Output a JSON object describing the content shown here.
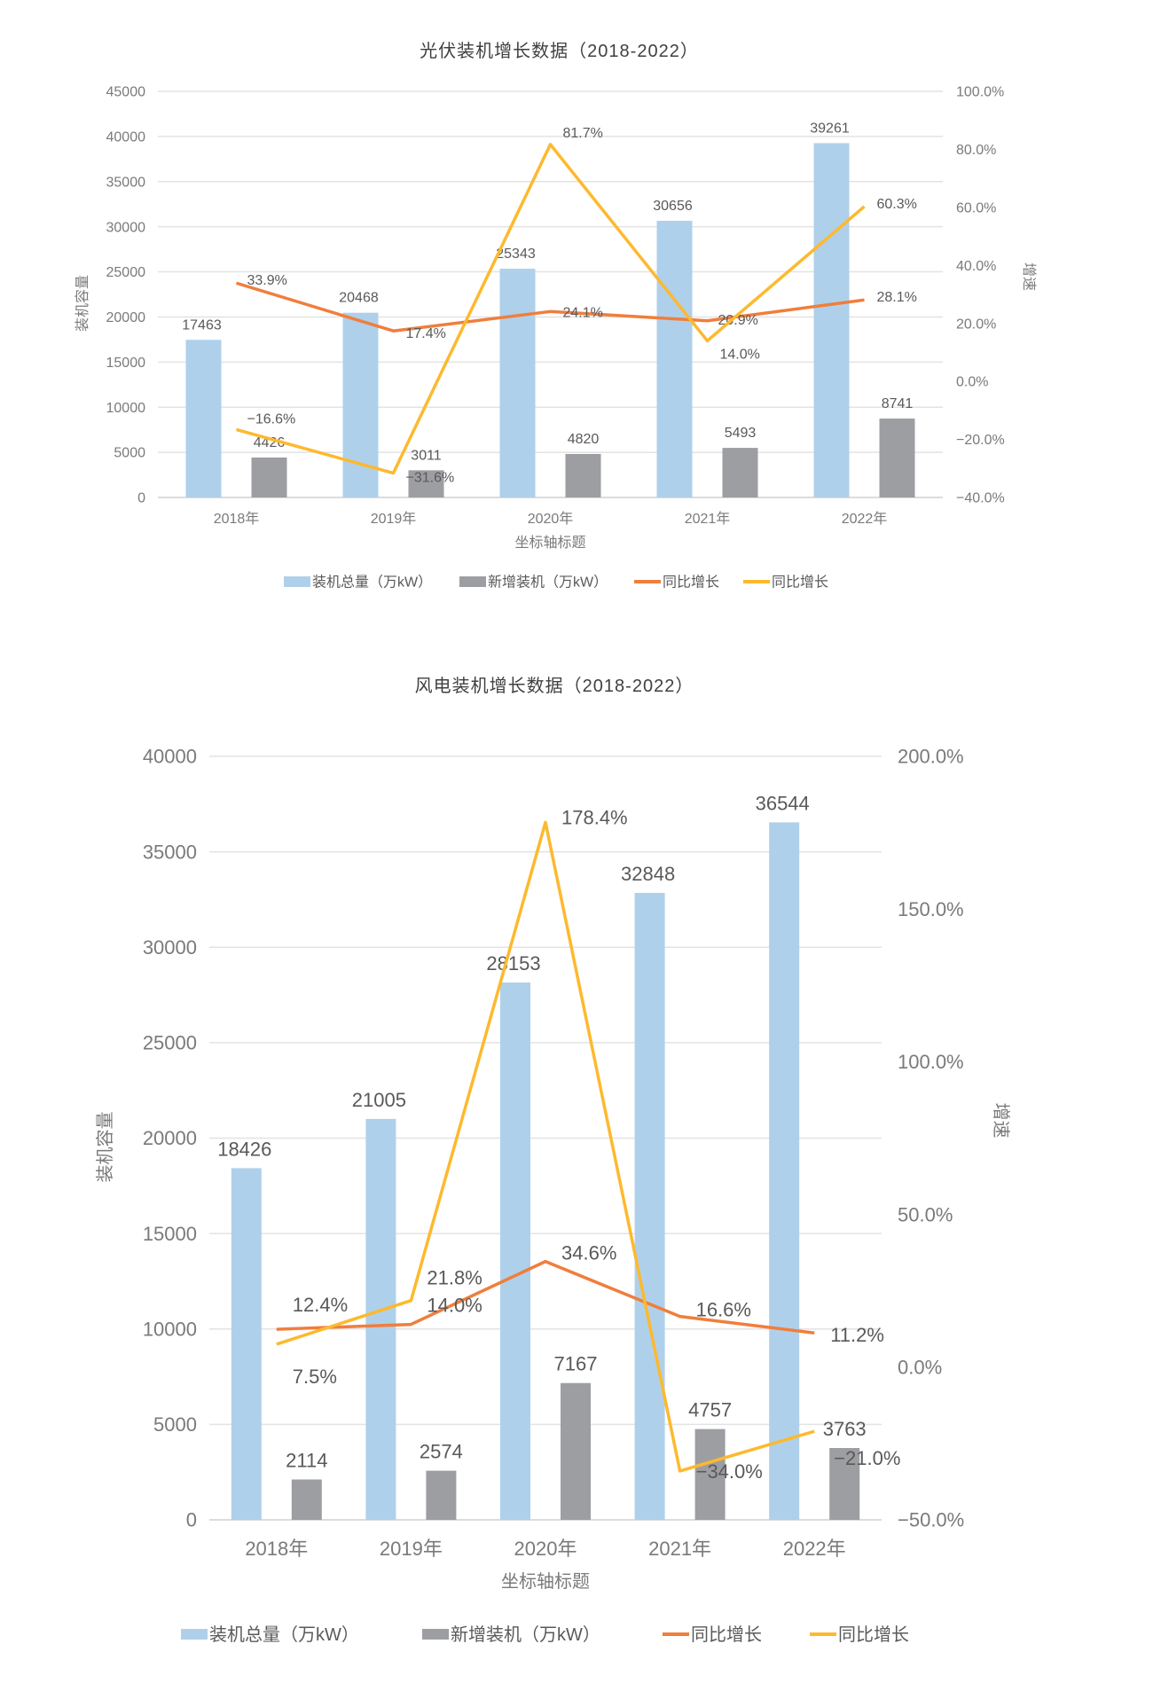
{
  "chart_data": [
    {
      "type": "bar",
      "title": "光伏装机增长数据（2018-2022）",
      "xlabel": "坐标轴标题",
      "ylabel": "装机容量",
      "y2label": "增速",
      "categories": [
        "2018年",
        "2019年",
        "2020年",
        "2021年",
        "2022年"
      ],
      "ylim": [
        0,
        45000
      ],
      "yticks": [
        0,
        5000,
        10000,
        15000,
        20000,
        25000,
        30000,
        35000,
        40000,
        45000
      ],
      "y2lim": [
        -40,
        100
      ],
      "y2ticks": [
        -40,
        -20,
        0,
        20,
        40,
        60,
        80,
        100
      ],
      "grid": true,
      "legend_position": "bottom",
      "series": [
        {
          "name": "装机总量（万kW）",
          "kind": "bar",
          "axis": "left",
          "color": "#AFD0EA",
          "values": [
            17463,
            20468,
            25343,
            30656,
            39261
          ],
          "labels": [
            "17463",
            "20468",
            "25343",
            "30656",
            "39261"
          ]
        },
        {
          "name": "新增装机（万kW）",
          "kind": "bar",
          "axis": "left",
          "color": "#9D9EA2",
          "values": [
            4426,
            3011,
            4820,
            5493,
            8741
          ],
          "labels": [
            "4426",
            "3011",
            "4820",
            "5493",
            "8741"
          ]
        },
        {
          "name": "同比增长",
          "kind": "line",
          "axis": "right",
          "color": "#F07E3C",
          "values": [
            33.9,
            17.4,
            24.1,
            20.9,
            28.1
          ],
          "labels": [
            "33.9%",
            "17.4%",
            "24.1%",
            "20.9%",
            "28.1%"
          ]
        },
        {
          "name": "同比增长",
          "kind": "line",
          "axis": "right",
          "color": "#FDB92E",
          "values": [
            -16.6,
            -31.6,
            81.7,
            14.0,
            60.3
          ],
          "labels": [
            "−16.6%",
            "−31.6%",
            "81.7%",
            "14.0%",
            "60.3%"
          ]
        }
      ]
    },
    {
      "type": "bar",
      "title": "风电装机增长数据（2018-2022）",
      "xlabel": "坐标轴标题",
      "ylabel": "装机容量",
      "y2label": "增速",
      "categories": [
        "2018年",
        "2019年",
        "2020年",
        "2021年",
        "2022年"
      ],
      "ylim": [
        0,
        40000
      ],
      "yticks": [
        0,
        5000,
        10000,
        15000,
        20000,
        25000,
        30000,
        35000,
        40000
      ],
      "y2lim": [
        -50,
        200
      ],
      "y2ticks": [
        -50,
        0,
        50,
        100,
        150,
        200
      ],
      "grid": true,
      "legend_position": "bottom",
      "series": [
        {
          "name": "装机总量（万kW）",
          "kind": "bar",
          "axis": "left",
          "color": "#AFD0EA",
          "values": [
            18426,
            21005,
            28153,
            32848,
            36544
          ],
          "labels": [
            "18426",
            "21005",
            "28153",
            "32848",
            "36544"
          ]
        },
        {
          "name": "新增装机（万kW）",
          "kind": "bar",
          "axis": "left",
          "color": "#9D9EA2",
          "values": [
            2114,
            2574,
            7167,
            4757,
            3763
          ],
          "labels": [
            "2114",
            "2574",
            "7167",
            "4757",
            "3763"
          ]
        },
        {
          "name": "同比增长",
          "kind": "line",
          "axis": "right",
          "color": "#F07E3C",
          "values": [
            12.4,
            14.0,
            34.6,
            16.6,
            11.2
          ],
          "labels": [
            "12.4%",
            "14.0%",
            "34.6%",
            "16.6%",
            "11.2%"
          ]
        },
        {
          "name": "同比增长",
          "kind": "line",
          "axis": "right",
          "color": "#FDB92E",
          "values": [
            7.5,
            21.8,
            178.4,
            -34.0,
            -21.0
          ],
          "labels": [
            "7.5%",
            "21.8%",
            "178.4%",
            "−34.0%",
            "−21.0%"
          ]
        }
      ]
    }
  ]
}
